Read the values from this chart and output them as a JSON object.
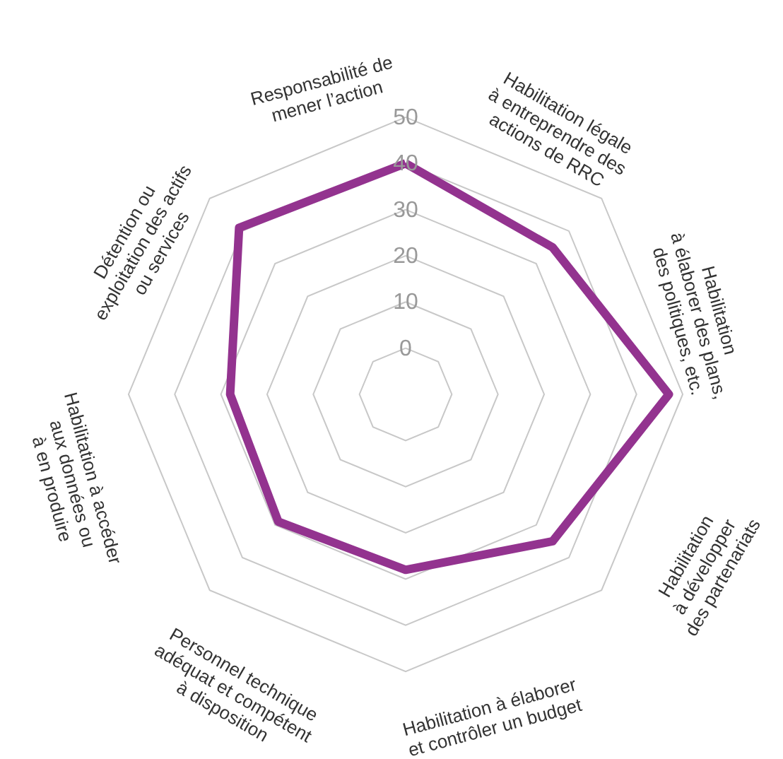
{
  "chart_data": {
    "type": "radar",
    "categories": [
      "Responsabilité de\nmener l’action",
      "Habilitation légale\nà entreprendre des\nactions de RRC",
      "Habilitation\nà élaborer des plans,\ndes politiques, etc.",
      "Habilitation\nà développer\ndes partenariats",
      "Habilitation à élaborer\net contrôler un budget",
      "Personnel technique\nadéquat et compétent\nà disposition",
      "Habilitation à accéder\naux données ou\nà en produire",
      "Détention ou\nexploitation des actifs\nou services"
    ],
    "series": [
      {
        "color": "#93338f",
        "values": [
          40,
          35,
          47,
          35,
          28,
          29,
          28,
          41
        ]
      }
    ],
    "ylim": [
      -10,
      50
    ],
    "yticks": [
      0,
      10,
      20,
      30,
      40,
      50
    ],
    "grid": true
  }
}
